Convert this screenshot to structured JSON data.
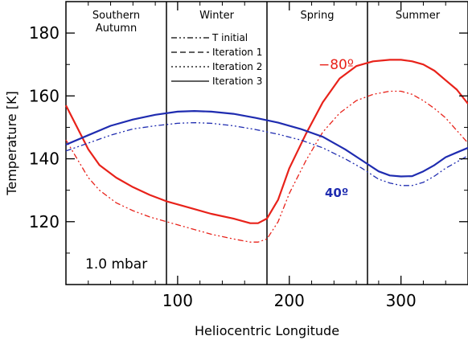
{
  "chart_data": {
    "type": "line",
    "xlabel": "Heliocentric Longitude",
    "ylabel": "Temperature [K]",
    "xlim": [
      0,
      360
    ],
    "ylim": [
      100,
      190
    ],
    "xticks": [
      100,
      200,
      300
    ],
    "yticks": [
      120,
      140,
      160,
      180
    ],
    "annotation": "1.0 mbar",
    "season_labels": [
      {
        "text": "Southern\nAutumn",
        "x": 45
      },
      {
        "text": "Winter",
        "x": 135
      },
      {
        "text": "Spring",
        "x": 225
      },
      {
        "text": "Summer",
        "x": 315
      }
    ],
    "season_boundaries": [
      90,
      180,
      270
    ],
    "legend": [
      {
        "label": "T initial",
        "style": "dashdot"
      },
      {
        "label": "Iteration 1",
        "style": "dashed"
      },
      {
        "label": "Iteration 2",
        "style": "dotted"
      },
      {
        "label": "Iteration 3",
        "style": "solid"
      }
    ],
    "series": [
      {
        "name": "-80°",
        "color": "#e8221a",
        "style": "solid",
        "label_at": [
          242,
          167
        ],
        "x": [
          0,
          10,
          20,
          30,
          45,
          60,
          75,
          90,
          110,
          130,
          150,
          165,
          172,
          180,
          190,
          200,
          215,
          230,
          245,
          260,
          275,
          290,
          300,
          310,
          320,
          330,
          340,
          350,
          360
        ],
        "y": [
          157,
          150,
          143,
          138,
          134,
          131,
          128.5,
          126.5,
          124.5,
          122.5,
          121,
          119.5,
          119.5,
          121,
          127,
          137,
          148,
          158,
          165.5,
          169.5,
          171,
          171.5,
          171.5,
          171,
          170,
          168,
          165,
          162,
          157.5
        ]
      },
      {
        "name": "-80° T initial",
        "color": "#e8221a",
        "style": "dashdot",
        "x": [
          0,
          10,
          20,
          30,
          45,
          60,
          75,
          90,
          110,
          130,
          150,
          165,
          172,
          180,
          190,
          200,
          215,
          230,
          245,
          260,
          275,
          290,
          300,
          310,
          320,
          330,
          340,
          350,
          360
        ],
        "y": [
          146,
          140,
          134,
          130,
          126,
          123.5,
          121.5,
          120,
          118,
          116,
          114.5,
          113.5,
          113.5,
          114.5,
          120,
          129,
          139.5,
          148.5,
          154.5,
          158.5,
          160.5,
          161.5,
          161.5,
          160.5,
          158.5,
          156,
          153,
          149,
          145
        ]
      },
      {
        "name": "40°",
        "color": "#1f2cb0",
        "style": "solid",
        "label_at": [
          306,
          128
        ],
        "x": [
          0,
          20,
          40,
          60,
          80,
          100,
          115,
          130,
          150,
          170,
          190,
          210,
          230,
          250,
          265,
          280,
          290,
          300,
          310,
          320,
          330,
          340,
          350,
          360
        ],
        "y": [
          144.5,
          147.5,
          150.5,
          152.5,
          154,
          155,
          155.2,
          155,
          154.3,
          153,
          151.5,
          149.5,
          147,
          143,
          139.5,
          136,
          134.7,
          134.4,
          134.5,
          136,
          138,
          140.5,
          142,
          143.5
        ]
      },
      {
        "name": "40° T initial",
        "color": "#1f2cb0",
        "style": "dashdot",
        "x": [
          0,
          20,
          40,
          60,
          80,
          100,
          115,
          130,
          150,
          170,
          190,
          210,
          230,
          250,
          265,
          280,
          290,
          300,
          310,
          320,
          330,
          340,
          350,
          360
        ],
        "y": [
          142.5,
          145,
          147.5,
          149.5,
          150.5,
          151.3,
          151.5,
          151.3,
          150.5,
          149.3,
          147.8,
          146,
          143.5,
          140,
          137,
          133.5,
          132.3,
          131.5,
          131.5,
          132.5,
          134.5,
          137,
          139,
          141
        ]
      }
    ],
    "series_labels": [
      "−80º",
      "40º"
    ]
  }
}
